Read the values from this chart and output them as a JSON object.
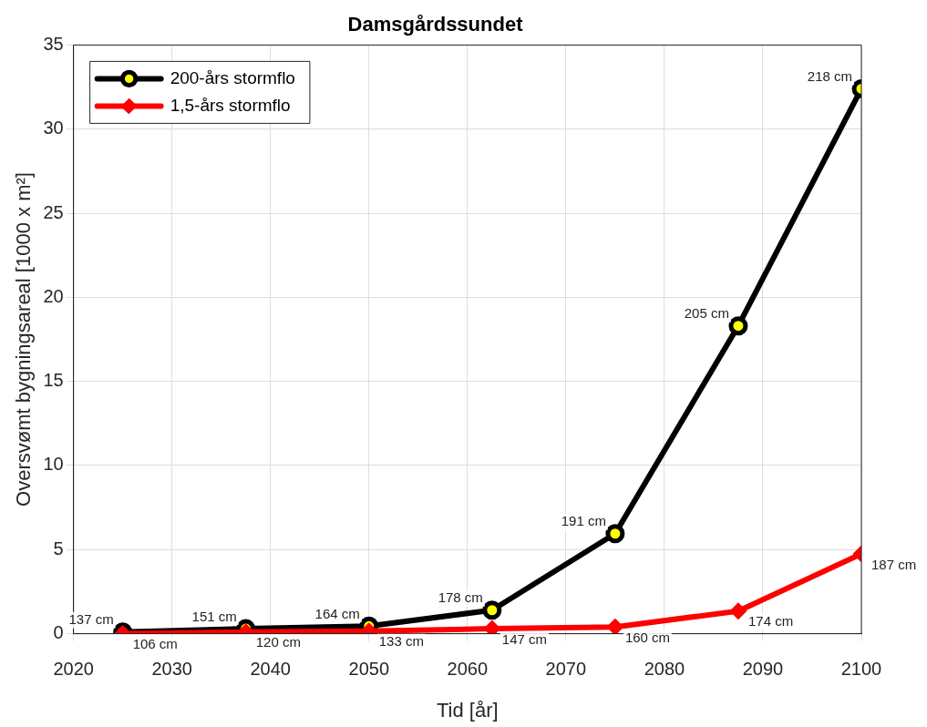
{
  "chart_data": {
    "type": "line",
    "title": "Damsgårdssundet",
    "xlabel": "Tid [år]",
    "ylabel": "Oversvømt bygningsareal [1000 x m²]",
    "x": [
      2025,
      2037.5,
      2050,
      2062.5,
      2075,
      2087.5,
      2100
    ],
    "series": [
      {
        "name": "200-års stormflo",
        "color": "#000000",
        "marker": "circle",
        "values": [
          0.1,
          0.3,
          0.45,
          1.4,
          5.95,
          18.3,
          32.4
        ]
      },
      {
        "name": "1,5-års stormflo",
        "color": "#ff0000",
        "marker": "diamond",
        "values": [
          0.0,
          0.1,
          0.15,
          0.3,
          0.4,
          1.35,
          4.75
        ]
      }
    ],
    "annotations": [
      {
        "text": "137 cm",
        "x": 2025,
        "y": 0.1
      },
      {
        "text": "151 cm",
        "x": 2037.5,
        "y": 0.3
      },
      {
        "text": "164 cm",
        "x": 2050,
        "y": 0.45
      },
      {
        "text": "178 cm",
        "x": 2062.5,
        "y": 1.4
      },
      {
        "text": "191 cm",
        "x": 2075,
        "y": 5.95
      },
      {
        "text": "205 cm",
        "x": 2087.5,
        "y": 18.3
      },
      {
        "text": "218 cm",
        "x": 2100,
        "y": 32.4
      },
      {
        "text": "106 cm",
        "x": 2025,
        "y": 0.0
      },
      {
        "text": "120 cm",
        "x": 2037.5,
        "y": 0.1
      },
      {
        "text": "133 cm",
        "x": 2050,
        "y": 0.15
      },
      {
        "text": "147 cm",
        "x": 2062.5,
        "y": 0.3
      },
      {
        "text": "160 cm",
        "x": 2075,
        "y": 0.4
      },
      {
        "text": "174 cm",
        "x": 2087.5,
        "y": 1.35
      },
      {
        "text": "187 cm",
        "x": 2100,
        "y": 4.75
      }
    ],
    "xlim": [
      2020,
      2100
    ],
    "xticks": [
      2020,
      2030,
      2040,
      2050,
      2060,
      2070,
      2080,
      2090,
      2100
    ],
    "ylim": [
      0,
      35
    ],
    "yticks": [
      0,
      5,
      10,
      15,
      20,
      25,
      30,
      35
    ],
    "grid": true,
    "legend": "top left",
    "line_style": "solid"
  }
}
